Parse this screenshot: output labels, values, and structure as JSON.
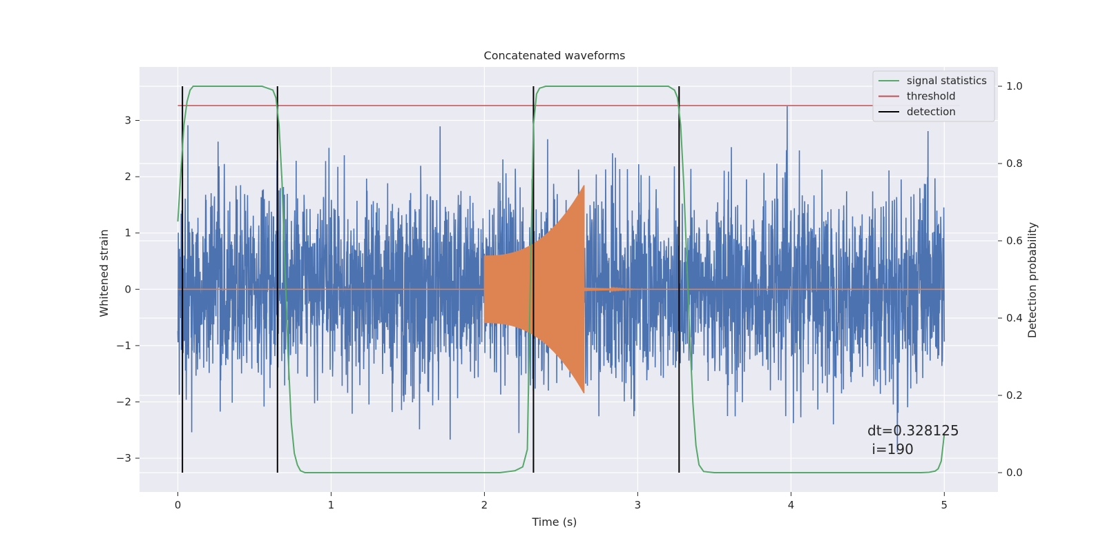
{
  "chart_data": {
    "type": "line",
    "title": "Concatenated waveforms",
    "xlabel": "Time (s)",
    "ylabel": "Whitened strain",
    "y2label": "Detection probability",
    "xlim": [
      -0.25,
      5.35
    ],
    "ylim": [
      -3.6,
      3.95
    ],
    "y2lim": [
      -0.05,
      1.05
    ],
    "xticks": [
      0,
      1,
      2,
      3,
      4,
      5
    ],
    "yticks": [
      -3,
      -2,
      -1,
      0,
      1,
      2,
      3
    ],
    "y2ticks": [
      0.0,
      0.2,
      0.4,
      0.6,
      0.8,
      1.0
    ],
    "xtick_labels": [
      "0",
      "1",
      "2",
      "3",
      "4",
      "5"
    ],
    "ytick_labels": [
      "−3",
      "−2",
      "−1",
      "0",
      "1",
      "2",
      "3"
    ],
    "y2tick_labels": [
      "0.0",
      "0.2",
      "0.4",
      "0.6",
      "0.8",
      "1.0"
    ],
    "grid": true,
    "legend_position": "top-right",
    "colors": {
      "strain": "#4c72b0",
      "injection": "#dd8452",
      "signal_statistics": "#55a868",
      "threshold": "#c44e52",
      "detection": "#000000",
      "background": "#eaeaf2",
      "grid": "#ffffff"
    },
    "legend": [
      "signal statistics",
      "threshold",
      "detection"
    ],
    "threshold": 0.95,
    "detections": [
      0.03,
      0.65,
      2.32,
      3.27
    ],
    "signal_statistics": {
      "x": [
        0.0,
        0.02,
        0.04,
        0.06,
        0.08,
        0.1,
        0.15,
        0.55,
        0.62,
        0.64,
        0.66,
        0.68,
        0.7,
        0.72,
        0.74,
        0.76,
        0.78,
        0.8,
        0.83,
        0.9,
        2.1,
        2.2,
        2.25,
        2.28,
        2.3,
        2.32,
        2.34,
        2.36,
        2.4,
        3.2,
        3.24,
        3.26,
        3.28,
        3.3,
        3.32,
        3.34,
        3.36,
        3.38,
        3.4,
        3.43,
        3.5,
        4.85,
        4.9,
        4.94,
        4.96,
        4.98,
        5.0
      ],
      "y": [
        0.65,
        0.78,
        0.9,
        0.96,
        0.99,
        1.0,
        1.0,
        1.0,
        0.99,
        0.97,
        0.9,
        0.75,
        0.52,
        0.3,
        0.13,
        0.05,
        0.02,
        0.005,
        0.0,
        0.0,
        0.0,
        0.005,
        0.015,
        0.06,
        0.5,
        0.9,
        0.98,
        0.995,
        1.0,
        1.0,
        0.99,
        0.97,
        0.9,
        0.75,
        0.55,
        0.35,
        0.18,
        0.07,
        0.02,
        0.003,
        0.0,
        0.0,
        0.001,
        0.004,
        0.01,
        0.03,
        0.1
      ]
    },
    "strain": {
      "t_range": [
        0.0,
        5.0
      ],
      "y_min": -3.3,
      "y_max": 3.6
    },
    "injection": {
      "t_range": [
        2.0,
        2.65
      ],
      "start_amplitude": 0.6,
      "end_amplitude": 1.85,
      "ringdown_end": 3.0,
      "flat_value": 0
    },
    "annotation": "dt=0.328125\n i=190"
  }
}
